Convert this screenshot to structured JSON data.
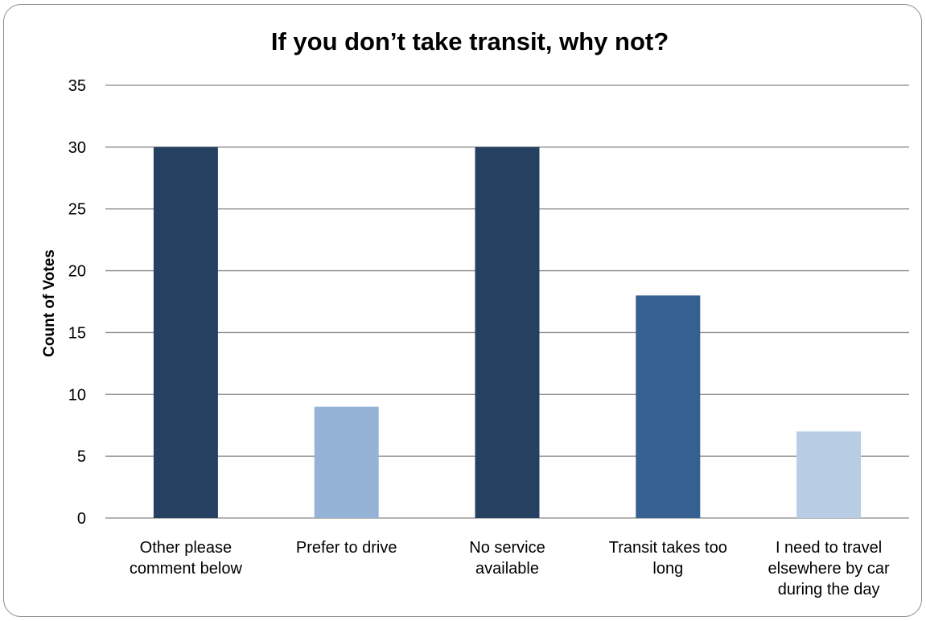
{
  "chart_data": {
    "type": "bar",
    "title": "If you don’t take transit, why not?",
    "xlabel": "",
    "ylabel": "Count of Votes",
    "ylim": [
      0,
      35
    ],
    "yticks": [
      0,
      5,
      10,
      15,
      20,
      25,
      30,
      35
    ],
    "grid": true,
    "legend": "none",
    "categories": [
      [
        "Other please",
        "comment below"
      ],
      [
        "Prefer to drive"
      ],
      [
        "No service",
        "available"
      ],
      [
        "Transit takes too",
        "long"
      ],
      [
        "I need to travel",
        "elsewhere by car",
        "during the day"
      ]
    ],
    "values": [
      30,
      9,
      30,
      18,
      7
    ],
    "colors": [
      "#264061",
      "#95b3d7",
      "#264061",
      "#366092",
      "#b8cce4"
    ],
    "gridline_color": "#868686"
  }
}
